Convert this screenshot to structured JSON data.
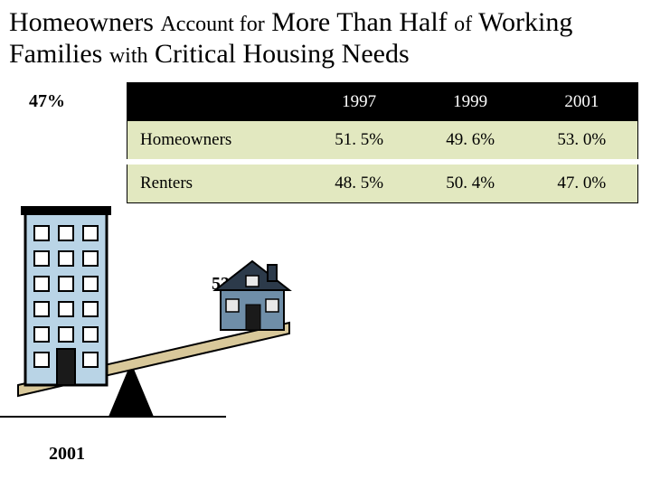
{
  "title_html": "Homeowners <span style='font-size:24px'>Account for</span> More Than Half <span style='font-size:24px'>of</span> Working Families <span style='font-size:24px'>with</span> Critical Housing Needs",
  "title_fontsize": 30,
  "title_color": "#000000",
  "labels": {
    "left_pct": "47%",
    "right_pct": "53%",
    "year": "2001"
  },
  "table": {
    "header_bg": "#000000",
    "header_fg": "#ffffff",
    "row_bg": "#e2e8c0",
    "row_fg": "#000000",
    "border_color": "#000000",
    "fontsize": 19,
    "columns": [
      "",
      "1997",
      "1999",
      "2001"
    ],
    "rows": [
      [
        "Homeowners",
        "51. 5%",
        "49. 6%",
        "53. 0%"
      ],
      [
        "Renters",
        "48. 5%",
        "50. 4%",
        "47. 0%"
      ]
    ]
  },
  "illustration": {
    "fulcrum_color": "#000000",
    "plank_color": "#d8c89a",
    "plank_edge": "#000000",
    "building_fill": "#b9d4e6",
    "building_edge": "#000000",
    "building_window": "#ffffff",
    "house_body": "#6f8ea8",
    "house_roof": "#2c3a4a",
    "house_chimney": "#2c3a4a",
    "house_door": "#1a1a1a",
    "house_window": "#e8e8e8",
    "ground_line": "#000000"
  }
}
